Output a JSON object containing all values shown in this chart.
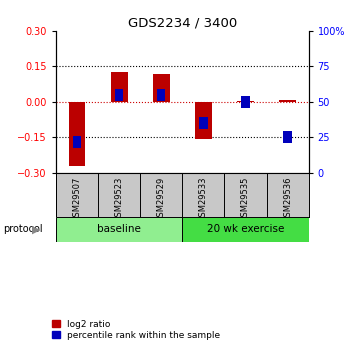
{
  "title": "GDS2234 / 3400",
  "samples": [
    "GSM29507",
    "GSM29523",
    "GSM29529",
    "GSM29533",
    "GSM29535",
    "GSM29536"
  ],
  "log2_ratio": [
    -0.27,
    0.125,
    0.12,
    -0.155,
    0.002,
    0.008
  ],
  "percentile_rank": [
    22,
    55,
    55,
    35,
    50,
    25
  ],
  "ylim_left": [
    -0.3,
    0.3
  ],
  "ylim_right": [
    0,
    100
  ],
  "yticks_left": [
    -0.3,
    -0.15,
    0,
    0.15,
    0.3
  ],
  "yticks_right": [
    0,
    25,
    50,
    75,
    100
  ],
  "bar_color_red": "#BB0000",
  "bar_color_blue": "#0000BB",
  "hline_color": "#CC0000",
  "dotted_color": "black",
  "legend_red_label": "log2 ratio",
  "legend_blue_label": "percentile rank within the sample",
  "protocol_label": "protocol",
  "bar_width": 0.4,
  "blue_marker_size": 0.05,
  "sample_box_color": "#C8C8C8",
  "baseline_color": "#90EE90",
  "exercise_color": "#44DD44",
  "n_baseline": 3,
  "n_exercise": 3
}
